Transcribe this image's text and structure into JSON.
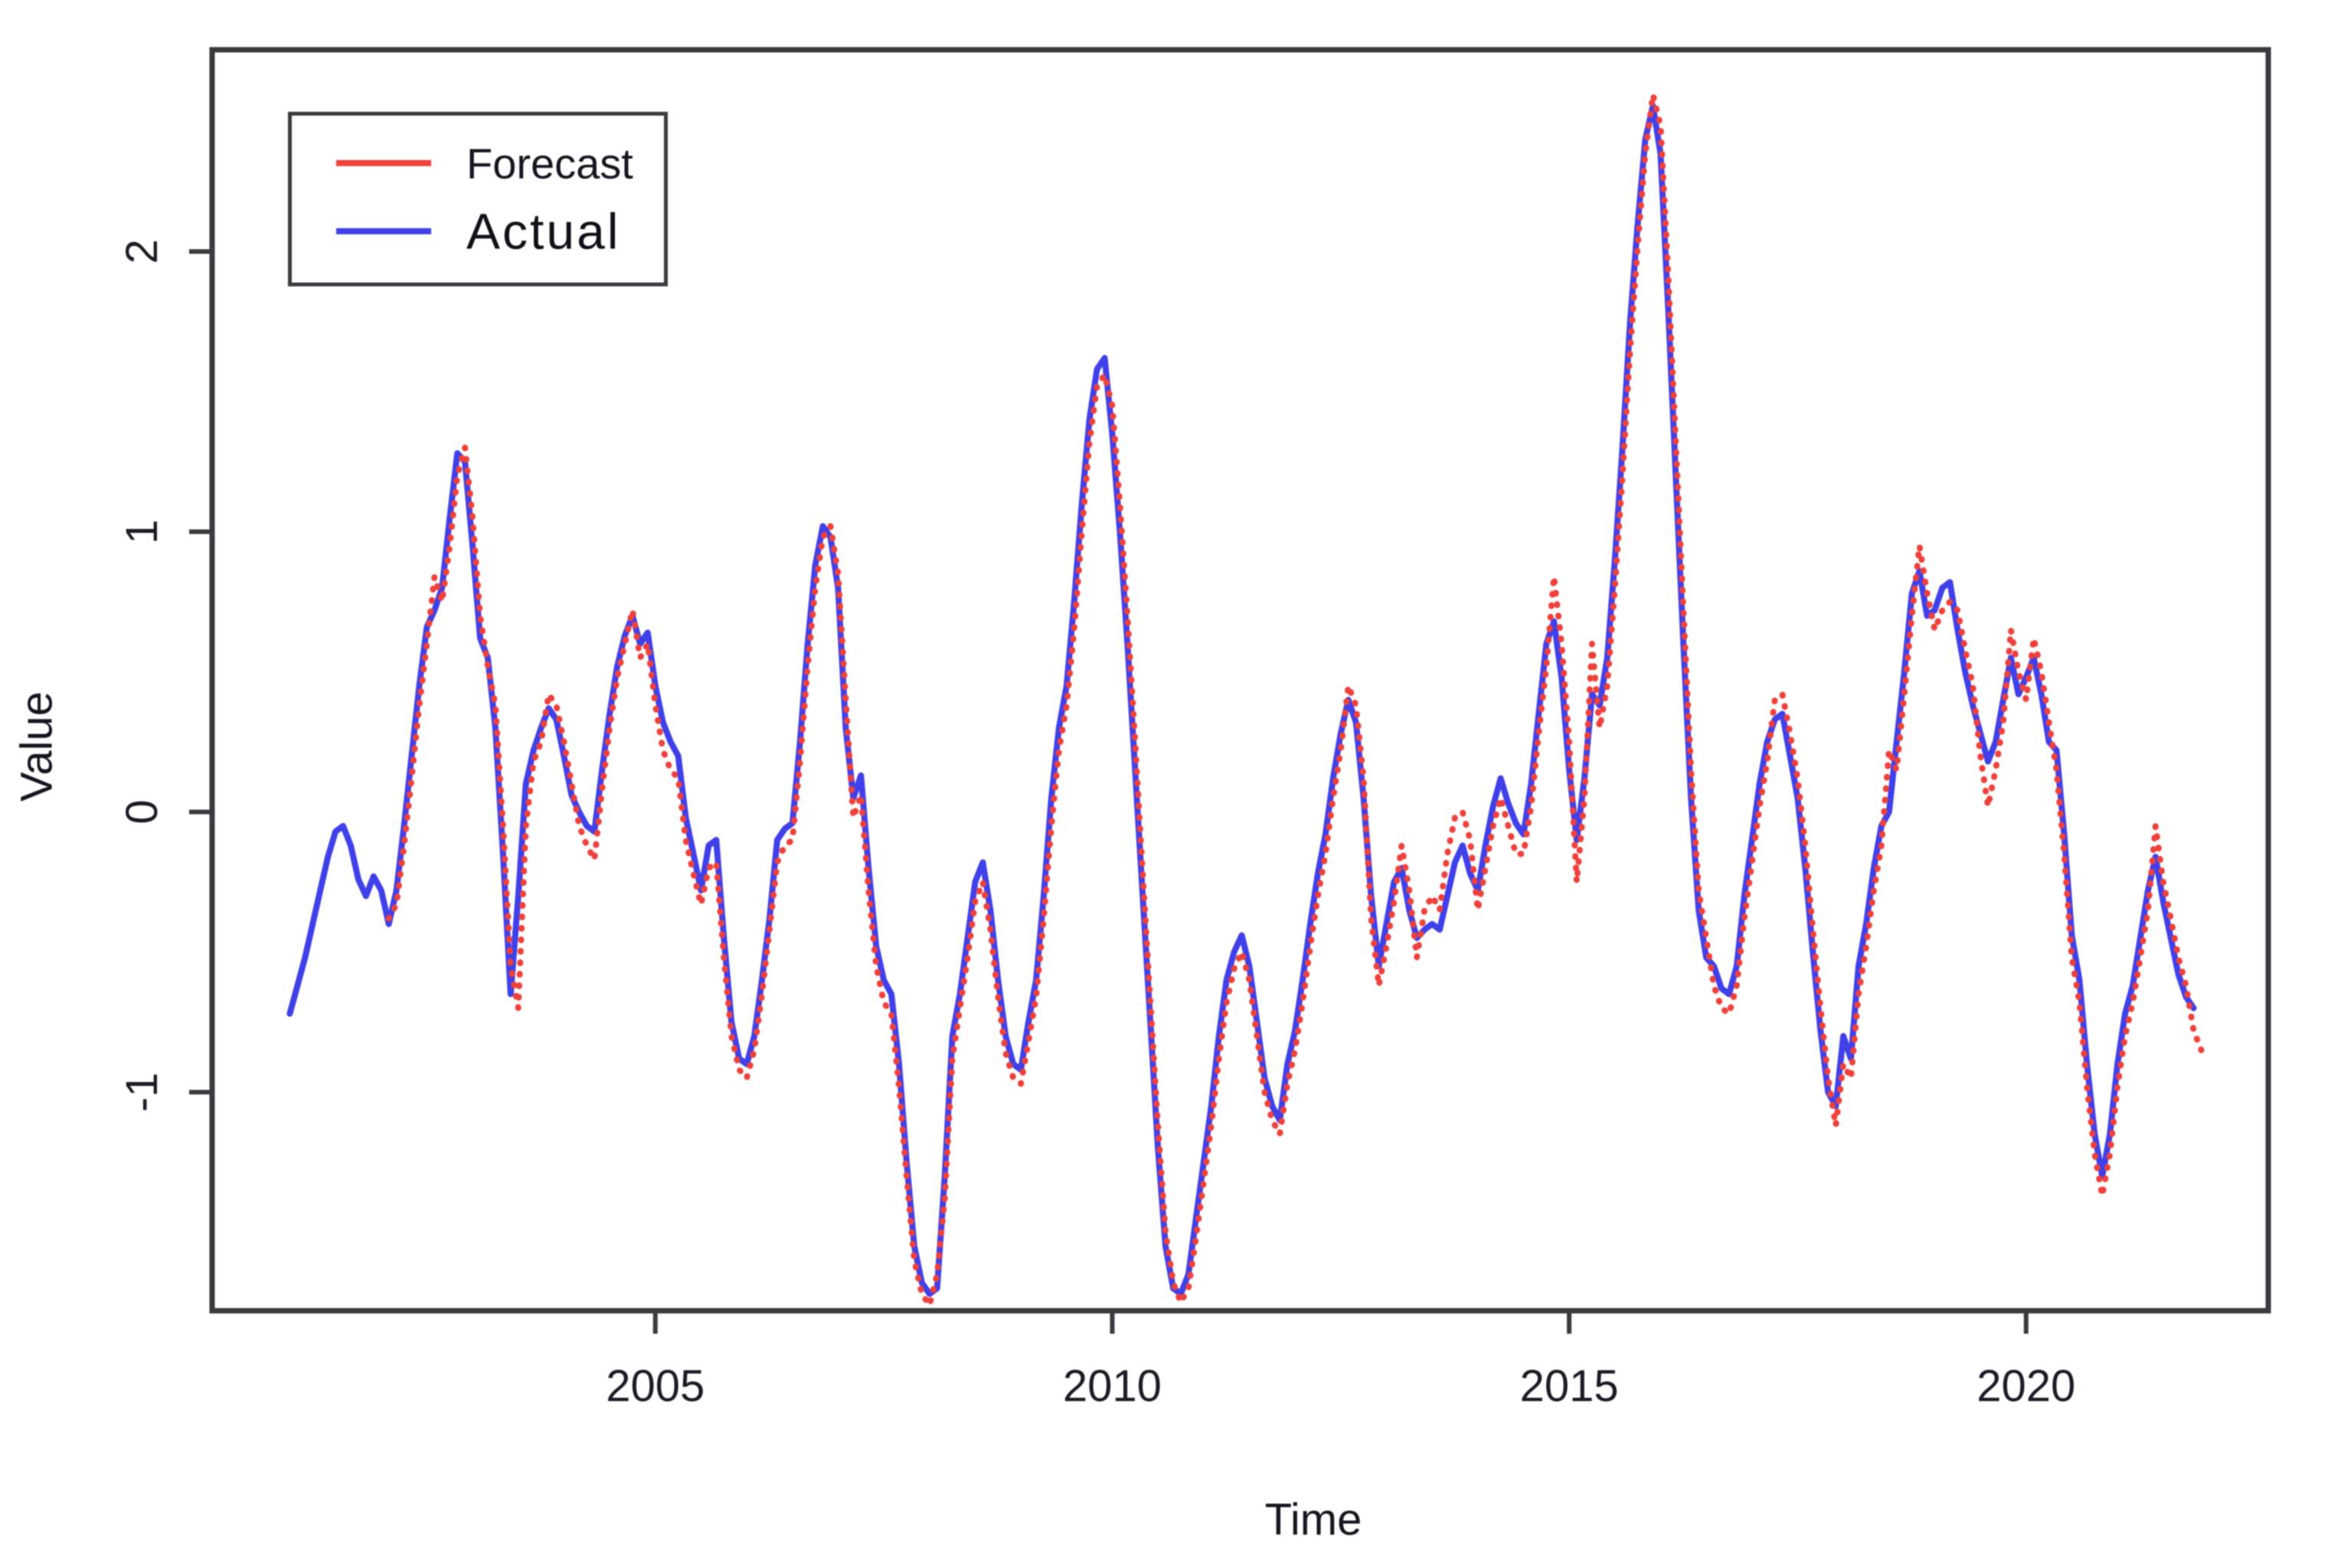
{
  "figure": {
    "background_color": "#ffffff",
    "axis_color": "#3a3a3f",
    "tick_label_color": "#1b1b26",
    "x_axis_label": "Time",
    "y_axis_label": "Value"
  },
  "legend": {
    "position": "top-left",
    "items": [
      {
        "label": "Forecast",
        "color": "#ef413c",
        "style": "solid-sample"
      },
      {
        "label": "Actual",
        "color": "#4040e8",
        "style": "solid-sample"
      }
    ]
  },
  "chart_data": {
    "type": "line",
    "title": "",
    "xlabel": "Time",
    "ylabel": "Value",
    "xlim": [
      2000.15,
      2022.65
    ],
    "ylim": [
      -1.78,
      2.72
    ],
    "x_ticks": [
      "2005",
      "2010",
      "2015",
      "2020"
    ],
    "x_tick_values": [
      2005,
      2010,
      2015,
      2020
    ],
    "y_ticks": [
      "2",
      "1",
      "0",
      "-1"
    ],
    "y_tick_values": [
      2,
      1,
      0,
      -1
    ],
    "grid": false,
    "legend_position": "top-left",
    "series": [
      {
        "name": "Actual",
        "color": "#4040e8",
        "line_style": "solid",
        "start": 2001.0,
        "points_per_year": 12,
        "values": [
          -0.72,
          -0.62,
          -0.52,
          -0.4,
          -0.28,
          -0.16,
          -0.07,
          -0.05,
          -0.12,
          -0.24,
          -0.3,
          -0.23,
          -0.28,
          -0.4,
          -0.28,
          -0.05,
          0.2,
          0.45,
          0.66,
          0.72,
          0.8,
          1.05,
          1.28,
          1.25,
          0.95,
          0.62,
          0.55,
          0.3,
          -0.15,
          -0.65,
          -0.3,
          0.1,
          0.22,
          0.3,
          0.37,
          0.33,
          0.2,
          0.06,
          0.0,
          -0.05,
          -0.07,
          0.15,
          0.35,
          0.52,
          0.63,
          0.7,
          0.6,
          0.64,
          0.45,
          0.32,
          0.25,
          0.2,
          -0.02,
          -0.15,
          -0.28,
          -0.12,
          -0.1,
          -0.45,
          -0.75,
          -0.88,
          -0.9,
          -0.8,
          -0.6,
          -0.38,
          -0.1,
          -0.06,
          -0.04,
          0.25,
          0.6,
          0.88,
          1.02,
          0.98,
          0.8,
          0.3,
          0.05,
          0.13,
          -0.2,
          -0.48,
          -0.6,
          -0.65,
          -0.9,
          -1.25,
          -1.55,
          -1.68,
          -1.72,
          -1.7,
          -1.3,
          -0.8,
          -0.65,
          -0.45,
          -0.25,
          -0.18,
          -0.35,
          -0.6,
          -0.8,
          -0.9,
          -0.92,
          -0.75,
          -0.6,
          -0.3,
          0.05,
          0.3,
          0.45,
          0.75,
          1.1,
          1.4,
          1.58,
          1.62,
          1.35,
          1.0,
          0.6,
          0.15,
          -0.3,
          -0.75,
          -1.2,
          -1.55,
          -1.7,
          -1.72,
          -1.65,
          -1.45,
          -1.25,
          -1.05,
          -0.8,
          -0.6,
          -0.5,
          -0.44,
          -0.55,
          -0.75,
          -0.95,
          -1.05,
          -1.1,
          -0.9,
          -0.78,
          -0.6,
          -0.4,
          -0.22,
          -0.08,
          0.12,
          0.28,
          0.4,
          0.32,
          0.05,
          -0.3,
          -0.55,
          -0.4,
          -0.25,
          -0.2,
          -0.35,
          -0.45,
          -0.42,
          -0.4,
          -0.42,
          -0.3,
          -0.18,
          -0.12,
          -0.22,
          -0.28,
          -0.12,
          0.02,
          0.12,
          0.03,
          -0.04,
          -0.08,
          0.1,
          0.35,
          0.6,
          0.68,
          0.48,
          0.15,
          -0.1,
          0.12,
          0.42,
          0.38,
          0.55,
          0.9,
          1.3,
          1.75,
          2.1,
          2.4,
          2.52,
          2.35,
          1.8,
          1.2,
          0.6,
          0.05,
          -0.35,
          -0.52,
          -0.55,
          -0.63,
          -0.65,
          -0.55,
          -0.3,
          -0.1,
          0.1,
          0.25,
          0.33,
          0.35,
          0.2,
          0.05,
          -0.2,
          -0.5,
          -0.78,
          -1.0,
          -1.05,
          -0.8,
          -0.88,
          -0.55,
          -0.4,
          -0.2,
          -0.05,
          0.0,
          0.25,
          0.5,
          0.78,
          0.86,
          0.7,
          0.72,
          0.8,
          0.82,
          0.65,
          0.5,
          0.38,
          0.28,
          0.18,
          0.25,
          0.4,
          0.55,
          0.42,
          0.48,
          0.55,
          0.42,
          0.25,
          0.22,
          -0.08,
          -0.44,
          -0.6,
          -0.9,
          -1.15,
          -1.3,
          -1.15,
          -0.9,
          -0.72,
          -0.62,
          -0.45,
          -0.28,
          -0.16,
          -0.32,
          -0.45,
          -0.58,
          -0.66,
          -0.7
        ]
      },
      {
        "name": "Forecast",
        "color": "#ef413c",
        "line_style": "dotted",
        "start": 2002.0833,
        "points_per_year": 12,
        "values": [
          -0.38,
          -0.33,
          -0.12,
          0.12,
          0.38,
          0.6,
          0.84,
          0.75,
          0.95,
          1.2,
          1.3,
          1.05,
          0.7,
          0.52,
          0.38,
          -0.05,
          -0.55,
          -0.7,
          -0.05,
          0.18,
          0.25,
          0.42,
          0.38,
          0.25,
          0.1,
          -0.05,
          -0.12,
          -0.17,
          0.08,
          0.3,
          0.48,
          0.6,
          0.72,
          0.55,
          0.6,
          0.38,
          0.22,
          0.15,
          0.12,
          -0.1,
          -0.22,
          -0.33,
          -0.2,
          -0.18,
          -0.52,
          -0.8,
          -0.92,
          -0.95,
          -0.85,
          -0.65,
          -0.42,
          -0.18,
          -0.12,
          -0.1,
          0.18,
          0.52,
          0.8,
          0.98,
          1.02,
          0.85,
          0.4,
          -0.02,
          0.06,
          -0.28,
          -0.55,
          -0.68,
          -0.72,
          -0.98,
          -1.3,
          -1.6,
          -1.72,
          -1.76,
          -1.65,
          -1.38,
          -0.88,
          -0.7,
          -0.52,
          -0.32,
          -0.25,
          -0.42,
          -0.66,
          -0.86,
          -0.95,
          -0.97,
          -0.82,
          -0.66,
          -0.38,
          -0.05,
          0.22,
          0.38,
          0.65,
          1.0,
          1.32,
          1.52,
          1.56,
          1.45,
          1.1,
          0.7,
          0.25,
          -0.22,
          -0.68,
          -1.12,
          -1.5,
          -1.68,
          -1.75,
          -1.7,
          -1.52,
          -1.32,
          -1.12,
          -0.88,
          -0.68,
          -0.56,
          -0.5,
          -0.6,
          -0.8,
          -1.0,
          -1.1,
          -1.15,
          -0.97,
          -0.85,
          -0.68,
          -0.48,
          -0.3,
          -0.15,
          0.05,
          0.22,
          0.45,
          0.38,
          0.12,
          -0.38,
          -0.62,
          -0.48,
          -0.32,
          -0.12,
          -0.28,
          -0.52,
          -0.35,
          -0.3,
          -0.35,
          -0.15,
          -0.02,
          0.0,
          -0.1,
          -0.35,
          -0.2,
          -0.05,
          0.05,
          -0.05,
          -0.15,
          -0.15,
          0.02,
          0.28,
          0.52,
          0.84,
          0.6,
          0.25,
          -0.25,
          0.05,
          0.6,
          0.3,
          0.45,
          0.8,
          1.2,
          1.65,
          2.02,
          2.35,
          2.56,
          2.45,
          1.92,
          1.32,
          0.72,
          0.15,
          -0.28,
          -0.45,
          -0.62,
          -0.7,
          -0.72,
          -0.62,
          -0.38,
          -0.18,
          0.02,
          0.18,
          0.4,
          0.42,
          0.28,
          0.12,
          -0.12,
          -0.42,
          -0.7,
          -0.95,
          -1.12,
          -0.9,
          -0.95,
          -0.65,
          -0.48,
          -0.28,
          -0.12,
          0.22,
          0.15,
          0.42,
          0.7,
          0.95,
          0.78,
          0.65,
          0.72,
          0.75,
          0.72,
          0.58,
          0.45,
          0.2,
          0.02,
          0.15,
          0.32,
          0.65,
          0.5,
          0.4,
          0.62,
          0.5,
          0.32,
          0.15,
          -0.15,
          -0.52,
          -0.68,
          -0.98,
          -1.22,
          -1.37,
          -1.22,
          -0.98,
          -0.8,
          -0.68,
          -0.52,
          -0.35,
          -0.05,
          -0.25,
          -0.38,
          -0.52,
          -0.62,
          -0.78,
          -0.85
        ]
      }
    ]
  }
}
